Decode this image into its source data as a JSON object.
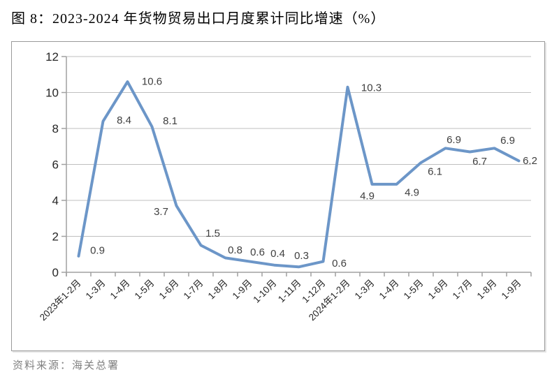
{
  "title": "图 8：2023-2024 年货物贸易出口月度累计同比增速（%）",
  "source": "资料来源：海关总署",
  "chart_data": {
    "type": "line",
    "title": "图 8：2023-2024 年货物贸易出口月度累计同比增速（%）",
    "categories": [
      "2023年1-2月",
      "1-3月",
      "1-4月",
      "1-5月",
      "1-6月",
      "1-7月",
      "1-8月",
      "1-9月",
      "1-10月",
      "1-11月",
      "1-12月",
      "2024年1-2月",
      "1-3月",
      "1-4月",
      "1-5月",
      "1-6月",
      "1-7月",
      "1-8月",
      "1-9月"
    ],
    "values": [
      0.9,
      8.4,
      10.6,
      8.1,
      3.7,
      1.5,
      0.8,
      0.6,
      0.4,
      0.3,
      0.6,
      10.3,
      4.9,
      4.9,
      6.1,
      6.9,
      6.7,
      6.9,
      6.2
    ],
    "xlabel": "",
    "ylabel": "",
    "ylim": [
      0,
      12
    ],
    "yticks": [
      0,
      2,
      4,
      6,
      8,
      10,
      12
    ],
    "grid": true,
    "legend_position": "none",
    "data_labels": true,
    "colors": {
      "line": "#6C96C8",
      "gridline": "#bfbfbf",
      "axis": "#a0a0a0",
      "tick_label": "#262626",
      "data_label": "#3f3f3f"
    },
    "source_note": "资料来源：海关总署"
  }
}
